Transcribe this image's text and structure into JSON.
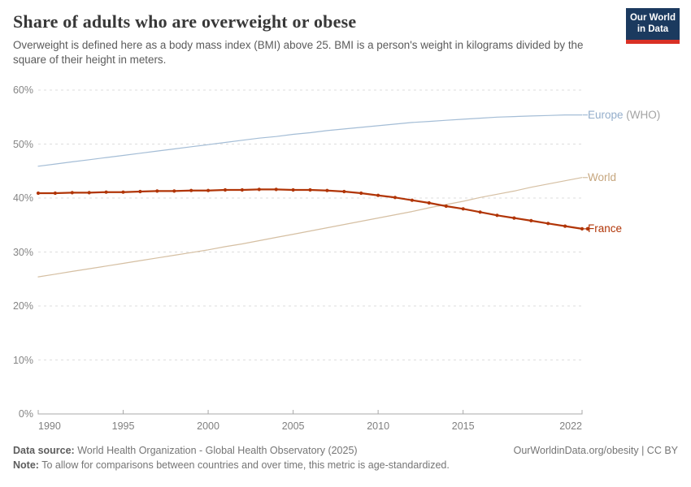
{
  "header": {
    "title": "Share of adults who are overweight or obese",
    "subtitle": "Overweight is defined here as a body mass index (BMI) above 25. BMI is a person's weight in kilograms divided by the square of their height in meters.",
    "logo": {
      "line1": "Our World",
      "line2": "in Data",
      "bg_color": "#1B3A5F",
      "stripe_color": "#D93025"
    }
  },
  "chart_data": {
    "type": "line",
    "title": "Share of adults who are overweight or obese",
    "xlabel": "",
    "ylabel": "",
    "unit": "%",
    "grid": "horizontal-dashed",
    "legend_position": "right-edge-labels",
    "xlim": [
      1990,
      2022
    ],
    "ylim": [
      0,
      60
    ],
    "x": [
      1990,
      1991,
      1992,
      1993,
      1994,
      1995,
      1996,
      1997,
      1998,
      1999,
      2000,
      2001,
      2002,
      2003,
      2004,
      2005,
      2006,
      2007,
      2008,
      2009,
      2010,
      2011,
      2012,
      2013,
      2014,
      2015,
      2016,
      2017,
      2018,
      2019,
      2020,
      2021,
      2022
    ],
    "x_ticks": [
      1990,
      1995,
      2000,
      2005,
      2010,
      2015,
      2022
    ],
    "x_tick_labels": [
      "1990",
      "1995",
      "2000",
      "2005",
      "2010",
      "2015",
      "2022"
    ],
    "y_ticks": [
      0,
      10,
      20,
      30,
      40,
      50,
      60
    ],
    "y_tick_labels": [
      "0%",
      "10%",
      "20%",
      "30%",
      "40%",
      "50%",
      "60%"
    ],
    "colors": {
      "grid": "#dddddd",
      "axis": "#a8a8a8"
    },
    "series": [
      {
        "id": "europe-who",
        "name": "Europe (WHO)",
        "color": "#A4BDD6",
        "line_width": 1.2,
        "marker": false,
        "label_parts": [
          {
            "text": "Europe",
            "color": "#94AECB"
          },
          {
            "text": " (WHO)",
            "color": "#A3A3A3"
          }
        ],
        "values": [
          45.9,
          46.3,
          46.7,
          47.1,
          47.5,
          47.9,
          48.3,
          48.7,
          49.1,
          49.5,
          49.9,
          50.3,
          50.7,
          51.1,
          51.4,
          51.8,
          52.1,
          52.5,
          52.8,
          53.1,
          53.4,
          53.7,
          54.0,
          54.2,
          54.4,
          54.6,
          54.8,
          55.0,
          55.1,
          55.2,
          55.3,
          55.4,
          55.4
        ]
      },
      {
        "id": "world",
        "name": "World",
        "color": "#D5BFA2",
        "line_width": 1.2,
        "marker": false,
        "label_parts": [
          {
            "text": "World",
            "color": "#C6A67E"
          }
        ],
        "values": [
          25.4,
          25.9,
          26.4,
          26.9,
          27.4,
          27.9,
          28.4,
          28.9,
          29.4,
          29.9,
          30.4,
          31.0,
          31.5,
          32.1,
          32.7,
          33.3,
          33.9,
          34.5,
          35.1,
          35.7,
          36.3,
          36.9,
          37.5,
          38.2,
          38.8,
          39.4,
          40.1,
          40.7,
          41.3,
          42.0,
          42.6,
          43.2,
          43.8
        ]
      },
      {
        "id": "france",
        "name": "France",
        "color": "#B13507",
        "line_width": 2.25,
        "marker": true,
        "label_parts": [
          {
            "text": "France",
            "color": "#B13507"
          }
        ],
        "values": [
          40.9,
          40.9,
          41.0,
          41.0,
          41.1,
          41.1,
          41.2,
          41.3,
          41.3,
          41.4,
          41.4,
          41.5,
          41.5,
          41.6,
          41.6,
          41.5,
          41.5,
          41.4,
          41.2,
          40.9,
          40.5,
          40.1,
          39.6,
          39.1,
          38.5,
          38.0,
          37.4,
          36.8,
          36.3,
          35.8,
          35.3,
          34.8,
          34.3
        ]
      }
    ]
  },
  "footer": {
    "source_label": "Data source:",
    "source_text": " World Health Organization - Global Health Observatory (2025)",
    "link_text": "OurWorldinData.org/obesity | CC BY",
    "note_label": "Note:",
    "note_text": " To allow for comparisons between countries and over time, this metric is age-standardized."
  }
}
